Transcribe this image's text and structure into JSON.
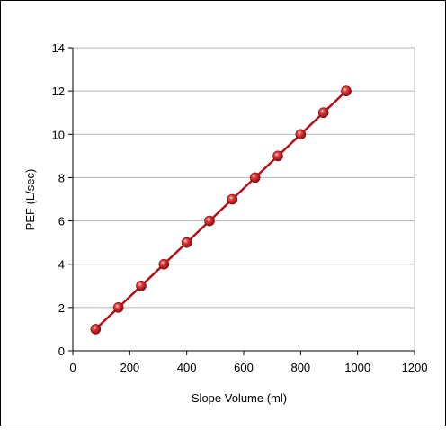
{
  "chart_data": {
    "type": "line",
    "title": "",
    "xlabel": "Slope Volume (ml)",
    "ylabel": "PEF (L/sec)",
    "xlim": [
      0,
      1200
    ],
    "ylim": [
      0,
      14
    ],
    "x_ticks": [
      0,
      200,
      400,
      600,
      800,
      1000,
      1200
    ],
    "y_ticks": [
      0,
      2,
      4,
      6,
      8,
      10,
      12,
      14
    ],
    "grid": "horizontal",
    "legend": "none",
    "series": [
      {
        "color": "#b0121b",
        "marker": "sphere",
        "points": [
          {
            "x": 80,
            "y": 1
          },
          {
            "x": 160,
            "y": 2
          },
          {
            "x": 240,
            "y": 3
          },
          {
            "x": 320,
            "y": 4
          },
          {
            "x": 400,
            "y": 5
          },
          {
            "x": 480,
            "y": 6
          },
          {
            "x": 560,
            "y": 7
          },
          {
            "x": 640,
            "y": 8
          },
          {
            "x": 720,
            "y": 9
          },
          {
            "x": 800,
            "y": 10
          },
          {
            "x": 880,
            "y": 11
          },
          {
            "x": 960,
            "y": 12
          }
        ]
      }
    ],
    "colors": {
      "axis": "#000000",
      "grid": "#b3b3b3",
      "line": "#b0121b",
      "marker_light": "#ff8a8a",
      "marker_dark": "#8f0d10"
    }
  }
}
